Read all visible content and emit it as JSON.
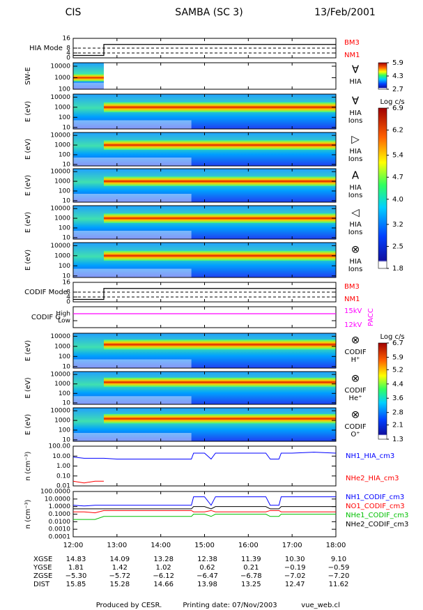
{
  "header": {
    "left": "CIS",
    "center": "SAMBA (SC 3)",
    "right": "13/Feb/2001"
  },
  "chart_data": [
    {
      "type": "mode",
      "ylabel": "HIA Mode",
      "ylim": [
        0,
        16
      ],
      "yticks": [
        0,
        4,
        8,
        16
      ],
      "x": [
        12,
        12.7,
        18
      ],
      "series": [
        {
          "values": [
            2,
            11,
            11
          ],
          "color": "#000000"
        }
      ],
      "side_labels": [
        "BM3",
        "NM1"
      ],
      "side_color": "#ff0000"
    },
    {
      "type": "spectrogram",
      "ylabel": "SW-E",
      "log": true,
      "ylim": [
        100,
        20000
      ],
      "yticks": [
        100,
        1000,
        10000
      ],
      "icon": "∀",
      "labels": [
        "HIA"
      ],
      "colorbar": {
        "lim": [
          2.7,
          5.9
        ],
        "ticks": [
          5.9,
          4.3,
          2.7
        ]
      }
    },
    {
      "type": "spectrogram",
      "ylabel": "E (eV)",
      "log": true,
      "ylim": [
        7,
        20000
      ],
      "yticks": [
        10,
        100,
        1000,
        10000
      ],
      "icon": "∀",
      "labels": [
        "HIA",
        "Ions"
      ],
      "colorbar": {
        "label": "Log c/s",
        "lim": [
          1.8,
          6.9
        ],
        "ticks": [
          6.9,
          6.2,
          5.4,
          4.7,
          4.0,
          3.2,
          2.5,
          1.8
        ]
      }
    },
    {
      "type": "spectrogram",
      "ylabel": "E (eV)",
      "log": true,
      "ylim": [
        7,
        20000
      ],
      "yticks": [
        10,
        100,
        1000,
        10000
      ],
      "icon": "▷",
      "labels": [
        "HIA",
        "Ions"
      ]
    },
    {
      "type": "spectrogram",
      "ylabel": "E (eV)",
      "log": true,
      "ylim": [
        7,
        20000
      ],
      "yticks": [
        10,
        100,
        1000,
        10000
      ],
      "icon": "A",
      "labels": [
        "HIA",
        "Ions"
      ]
    },
    {
      "type": "spectrogram",
      "ylabel": "E (eV)",
      "log": true,
      "ylim": [
        7,
        20000
      ],
      "yticks": [
        10,
        100,
        1000,
        10000
      ],
      "icon": "◁",
      "labels": [
        "HIA",
        "Ions"
      ]
    },
    {
      "type": "spectrogram",
      "ylabel": "E (eV)",
      "log": true,
      "ylim": [
        7,
        20000
      ],
      "yticks": [
        10,
        100,
        1000,
        10000
      ],
      "icon": "⊗",
      "labels": [
        "HIA",
        "Ions"
      ]
    },
    {
      "type": "mode",
      "ylabel": "CODIF Mode",
      "ylim": [
        0,
        16
      ],
      "yticks": [
        0,
        4,
        8,
        16
      ],
      "x": [
        12,
        12.7,
        18
      ],
      "series": [
        {
          "values": [
            2,
            11,
            11
          ],
          "color": "#000000"
        }
      ],
      "side_labels": [
        "BM3",
        "NM1"
      ],
      "side_color": "#ff0000"
    },
    {
      "type": "mode",
      "ylabel": "CODIF G",
      "ylim": [
        0,
        3
      ],
      "yticks": [
        {
          "value": 1,
          "label": "Low"
        },
        {
          "value": 2,
          "label": "High"
        }
      ],
      "x": [
        12,
        18
      ],
      "series": [
        {
          "values": [
            2,
            2
          ],
          "color": "#ff00ff"
        }
      ],
      "side_labels": [
        "15kV",
        "12kV"
      ],
      "side_title": "PACC",
      "side_color": "#ff00ff"
    },
    {
      "type": "spectrogram",
      "ylabel": "E (eV)",
      "log": true,
      "ylim": [
        7,
        20000
      ],
      "yticks": [
        10,
        100,
        1000,
        10000
      ],
      "icon": "⊗",
      "labels": [
        "CODIF",
        "H⁺"
      ],
      "colorbar": {
        "label": "Log c/s",
        "lim": [
          1.3,
          6.7
        ],
        "ticks": [
          6.7,
          5.9,
          5.2,
          4.4,
          3.6,
          2.8,
          2.1,
          1.3
        ]
      }
    },
    {
      "type": "spectrogram",
      "ylabel": "E (eV)",
      "log": true,
      "ylim": [
        7,
        20000
      ],
      "yticks": [
        10,
        100,
        1000,
        10000
      ],
      "icon": "⊗",
      "labels": [
        "CODIF",
        "He⁺"
      ]
    },
    {
      "type": "spectrogram",
      "ylabel": "E (eV)",
      "log": true,
      "ylim": [
        7,
        20000
      ],
      "yticks": [
        10,
        100,
        1000,
        10000
      ],
      "icon": "⊗",
      "labels": [
        "CODIF",
        "O⁺"
      ]
    },
    {
      "type": "line",
      "ylabel": "n (cm⁻³)",
      "log": true,
      "ylim": [
        0.01,
        100
      ],
      "yticks": [
        {
          "value": 0.01,
          "label": "0.01"
        },
        {
          "value": 0.1,
          "label": "0.10"
        },
        {
          "value": 1,
          "label": "1.00"
        },
        {
          "value": 10,
          "label": "10.00"
        },
        {
          "value": 100,
          "label": "100.00"
        }
      ],
      "x": [
        12,
        12.25,
        12.5,
        12.7,
        13,
        13.5,
        14,
        14.5,
        14.7,
        14.75,
        15,
        15.15,
        15.25,
        15.5,
        16,
        16.4,
        16.5,
        16.7,
        16.75,
        17,
        17.5,
        18
      ],
      "series": [
        {
          "name": "NH1_HIA_cm3",
          "color": "#0000ff",
          "values": [
            8,
            6,
            6,
            6,
            5,
            5,
            5,
            5,
            5,
            20,
            20,
            5,
            20,
            20,
            20,
            20,
            5,
            5,
            20,
            20,
            25,
            20
          ]
        },
        {
          "name": "NHe2_HIA_cm3",
          "color": "#ff0000",
          "values": [
            0.03,
            0.02,
            0.03,
            0.03,
            null,
            null,
            null,
            null,
            null,
            null,
            null,
            null,
            null,
            null,
            null,
            null,
            null,
            null,
            null,
            null,
            null,
            null
          ]
        }
      ]
    },
    {
      "type": "line",
      "ylabel": "n (cm⁻³)",
      "log": true,
      "ylim": [
        0.0001,
        100
      ],
      "yticks": [
        {
          "value": 0.0001,
          "label": "0.0001"
        },
        {
          "value": 0.001,
          "label": "0.0010"
        },
        {
          "value": 0.01,
          "label": "0.0100"
        },
        {
          "value": 0.1,
          "label": "0.1000"
        },
        {
          "value": 1,
          "label": "1.0000"
        },
        {
          "value": 10,
          "label": "10.0000"
        },
        {
          "value": 100,
          "label": "100.0000"
        }
      ],
      "x": [
        12,
        12.25,
        12.5,
        12.7,
        13,
        13.5,
        14,
        14.5,
        14.7,
        14.75,
        15,
        15.15,
        15.25,
        15.5,
        16,
        16.4,
        16.5,
        16.7,
        16.75,
        17,
        17.5,
        18
      ],
      "series": [
        {
          "name": "NH1_CODIF_cm3",
          "color": "#0000ff",
          "values": [
            1.5,
            1.2,
            1.5,
            1.5,
            1.5,
            1.5,
            1.5,
            1.5,
            1.5,
            20,
            20,
            1.5,
            20,
            20,
            20,
            20,
            1.5,
            1.5,
            20,
            20,
            20,
            20
          ]
        },
        {
          "name": "NO1_CODIF_cm3",
          "color": "#ff0000",
          "values": [
            0.2,
            0.2,
            0.15,
            0.3,
            0.3,
            0.3,
            0.3,
            0.3,
            0.3,
            0.2,
            0.2,
            0.3,
            0.2,
            0.2,
            0.2,
            0.2,
            0.3,
            0.3,
            0.2,
            0.2,
            0.2,
            0.2
          ]
        },
        {
          "name": "NHe1_CODIF_cm3",
          "color": "#00c000",
          "values": [
            0.02,
            0.02,
            0.02,
            0.05,
            0.05,
            0.05,
            0.05,
            0.05,
            0.05,
            0.1,
            0.1,
            0.05,
            0.1,
            0.1,
            0.1,
            0.1,
            0.05,
            0.05,
            0.1,
            0.1,
            0.1,
            0.1
          ]
        },
        {
          "name": "NHe2_CODIF_cm3",
          "color": "#000000",
          "values": [
            0.5,
            0.5,
            0.5,
            0.5,
            0.5,
            0.5,
            0.5,
            0.5,
            0.5,
            1,
            1,
            0.5,
            1,
            1,
            1,
            1,
            0.5,
            0.5,
            1,
            1,
            1,
            1
          ]
        }
      ],
      "xlim": [
        12,
        18
      ],
      "xticks": [
        {
          "value": 12,
          "label": "12:00"
        },
        {
          "value": 13,
          "label": "13:00"
        },
        {
          "value": 14,
          "label": "14:00"
        },
        {
          "value": 15,
          "label": "15:00"
        },
        {
          "value": 16,
          "label": "16:00"
        },
        {
          "value": 17,
          "label": "17:00"
        },
        {
          "value": 18,
          "label": "18:00"
        }
      ]
    }
  ],
  "orbit": {
    "rows": [
      {
        "label": "XGSE",
        "values": [
          "14.83",
          "14.09",
          "13.28",
          "12.38",
          "11.39",
          "10.30",
          "9.10"
        ]
      },
      {
        "label": "YGSE",
        "values": [
          "1.81",
          "1.42",
          "1.02",
          "0.62",
          "0.21",
          "−0.19",
          "−0.59"
        ]
      },
      {
        "label": "ZGSE",
        "values": [
          "−5.30",
          "−5.72",
          "−6.12",
          "−6.47",
          "−6.78",
          "−7.02",
          "−7.20"
        ]
      },
      {
        "label": "DIST",
        "values": [
          "15.85",
          "15.28",
          "14.66",
          "13.98",
          "13.25",
          "12.47",
          "11.62"
        ]
      }
    ]
  },
  "footer": {
    "left": "Produced by CESR.",
    "middle": "Printing date: 07/Nov/2003",
    "right": "vue_web.cl"
  }
}
